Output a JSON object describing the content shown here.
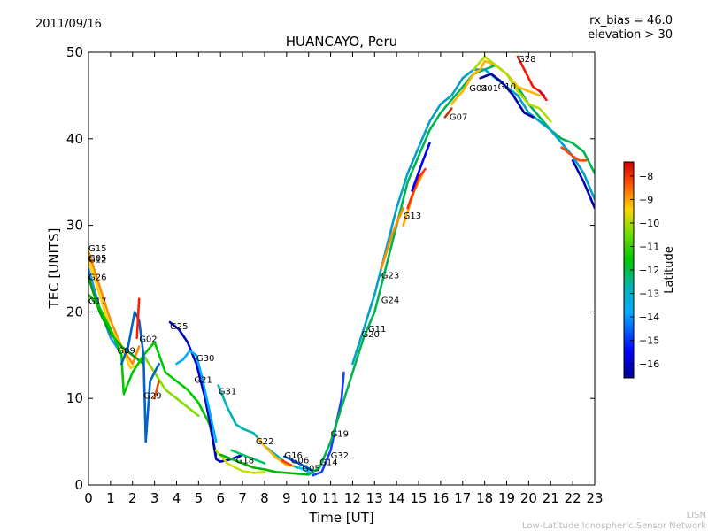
{
  "header": {
    "date": "2011/09/16",
    "rx_bias": "rx_bias = 46.0",
    "elevation": "elevation > 30"
  },
  "credit": {
    "line1": "LISN",
    "line2": "Low-Latitude Ionospheric Sensor Network"
  },
  "chart_data": {
    "type": "scatter",
    "title": "HUANCAYO, Peru",
    "xlabel": "Time [UT]",
    "ylabel": "TEC [UNITS]",
    "xlim": [
      0,
      23
    ],
    "ylim": [
      0,
      50
    ],
    "xticks": [
      "0",
      "1",
      "2",
      "3",
      "4",
      "5",
      "6",
      "7",
      "8",
      "9",
      "10",
      "11",
      "12",
      "13",
      "14",
      "15",
      "16",
      "17",
      "18",
      "19",
      "20",
      "21",
      "22",
      "23"
    ],
    "yticks": [
      "0",
      "10",
      "20",
      "30",
      "40",
      "50"
    ],
    "colorbar": {
      "label": "Latitude",
      "min": -16.6,
      "max": -7.4,
      "ticks": [
        "-8",
        "-9",
        "-10",
        "-11",
        "-12",
        "-13",
        "-14",
        "-15",
        "-16"
      ]
    },
    "tracks": [
      {
        "color": "#ff8c00",
        "points": [
          [
            0,
            27
          ],
          [
            0.5,
            23
          ],
          [
            1,
            19
          ],
          [
            1.5,
            16
          ],
          [
            2,
            14
          ],
          [
            2.3,
            16
          ]
        ]
      },
      {
        "color": "#ffd400",
        "points": [
          [
            0,
            26
          ],
          [
            0.5,
            22
          ],
          [
            1,
            18
          ],
          [
            1.5,
            16
          ],
          [
            1.9,
            13.5
          ],
          [
            2.3,
            14
          ]
        ]
      },
      {
        "color": "#1e90ff",
        "points": [
          [
            0,
            25
          ],
          [
            0.5,
            20.5
          ],
          [
            1,
            17
          ],
          [
            1.4,
            15.5
          ]
        ]
      },
      {
        "color": "#00a000",
        "points": [
          [
            0,
            24
          ],
          [
            0.5,
            20
          ],
          [
            1,
            17.5
          ],
          [
            1.5,
            16
          ],
          [
            2,
            15
          ],
          [
            2.5,
            14
          ]
        ]
      },
      {
        "color": "#00c800",
        "points": [
          [
            0,
            22
          ],
          [
            0.5,
            20.5
          ],
          [
            1,
            18
          ],
          [
            1.5,
            15
          ],
          [
            1.6,
            10.5
          ],
          [
            2,
            13
          ],
          [
            2.5,
            15
          ],
          [
            3,
            16.5
          ],
          [
            3.5,
            13
          ],
          [
            4,
            12
          ],
          [
            4.5,
            11
          ],
          [
            5,
            9.5
          ],
          [
            5.5,
            7
          ],
          [
            5.8,
            3.5
          ]
        ]
      },
      {
        "color": "#7fe000",
        "points": [
          [
            2.5,
            15
          ],
          [
            3,
            13
          ],
          [
            3.5,
            11
          ],
          [
            4,
            10
          ],
          [
            4.5,
            9
          ],
          [
            5,
            8
          ]
        ]
      },
      {
        "color": "#0064c8",
        "points": [
          [
            1.5,
            14
          ],
          [
            1.8,
            16
          ],
          [
            2.1,
            20
          ],
          [
            2.3,
            19
          ],
          [
            2.5,
            15
          ],
          [
            2.6,
            5
          ],
          [
            2.8,
            12
          ],
          [
            3.2,
            14
          ]
        ]
      },
      {
        "color": "#ff1a00",
        "points": [
          [
            2.2,
            17
          ],
          [
            2.3,
            21.5
          ]
        ]
      },
      {
        "color": "#e05000",
        "points": [
          [
            3,
            10
          ],
          [
            3.2,
            12
          ]
        ]
      },
      {
        "color": "#0000c0",
        "points": [
          [
            3.7,
            18.8
          ],
          [
            4.1,
            18
          ],
          [
            4.5,
            16.5
          ],
          [
            4.9,
            14
          ],
          [
            5.3,
            10
          ],
          [
            5.6,
            6
          ],
          [
            5.8,
            3
          ],
          [
            6,
            2.7
          ],
          [
            6.5,
            3
          ],
          [
            7,
            3.5
          ]
        ]
      },
      {
        "color": "#00aaff",
        "points": [
          [
            4,
            14
          ],
          [
            4.3,
            14.5
          ],
          [
            4.6,
            15.5
          ],
          [
            4.9,
            15
          ],
          [
            5.2,
            12
          ],
          [
            5.5,
            8.5
          ],
          [
            5.8,
            5
          ]
        ]
      },
      {
        "color": "#00b4b4",
        "points": [
          [
            5.9,
            11.5
          ],
          [
            6.3,
            9
          ],
          [
            6.7,
            7
          ],
          [
            7,
            6.5
          ],
          [
            7.5,
            6
          ],
          [
            8,
            4.5
          ],
          [
            8.5,
            3.5
          ],
          [
            9,
            2.5
          ],
          [
            9.5,
            2
          ],
          [
            10,
            1.7
          ]
        ]
      },
      {
        "color": "#c8e000",
        "points": [
          [
            5.8,
            4
          ],
          [
            6.3,
            2.5
          ],
          [
            7,
            1.6
          ],
          [
            7.5,
            1.4
          ],
          [
            8,
            1.5
          ]
        ]
      },
      {
        "color": "#00b400",
        "points": [
          [
            6,
            3.5
          ],
          [
            6.5,
            3
          ],
          [
            7,
            2.5
          ],
          [
            7.5,
            2
          ],
          [
            8,
            1.8
          ],
          [
            8.5,
            1.5
          ],
          [
            9,
            1.4
          ],
          [
            9.5,
            1.3
          ],
          [
            10,
            1.2
          ]
        ]
      },
      {
        "color": "#00c864",
        "points": [
          [
            6.5,
            4
          ],
          [
            7,
            3.5
          ],
          [
            7.5,
            3
          ],
          [
            8,
            2.5
          ]
        ]
      },
      {
        "color": "#ffb400",
        "points": [
          [
            7.7,
            5.4
          ],
          [
            8,
            4.5
          ],
          [
            8.5,
            3.2
          ],
          [
            9,
            2.3
          ],
          [
            9.3,
            2.2
          ]
        ]
      },
      {
        "color": "#ff3c00",
        "points": [
          [
            8.8,
            2.8
          ],
          [
            9.2,
            2.3
          ]
        ]
      },
      {
        "color": "#0050d0",
        "points": [
          [
            8.9,
            3.3
          ],
          [
            9.3,
            2.8
          ],
          [
            9.8,
            2.2
          ],
          [
            10.2,
            1.6
          ]
        ]
      },
      {
        "color": "#00d2ff",
        "points": [
          [
            9.6,
            2
          ],
          [
            10,
            1.5
          ],
          [
            10.3,
            1.2
          ]
        ]
      },
      {
        "color": "#1e3cff",
        "points": [
          [
            10.2,
            1.1
          ],
          [
            10.6,
            1.5
          ],
          [
            11,
            4
          ],
          [
            11.5,
            10
          ],
          [
            11.6,
            13
          ]
        ]
      },
      {
        "color": "#00b450",
        "points": [
          [
            10,
            1.2
          ],
          [
            10.5,
            2
          ],
          [
            11,
            5
          ],
          [
            11.5,
            9
          ],
          [
            12,
            13
          ],
          [
            12.5,
            17
          ],
          [
            13,
            20
          ],
          [
            13.5,
            25
          ],
          [
            14,
            30
          ],
          [
            14.5,
            35
          ],
          [
            15,
            38
          ],
          [
            15.5,
            41
          ],
          [
            16,
            43
          ],
          [
            16.5,
            44.5
          ],
          [
            17,
            46
          ],
          [
            17.5,
            47.5
          ],
          [
            18,
            48
          ],
          [
            18.5,
            48.5
          ],
          [
            19,
            47.5
          ],
          [
            19.5,
            46
          ],
          [
            20,
            44
          ],
          [
            20.5,
            42.5
          ],
          [
            21,
            41
          ],
          [
            21.5,
            40
          ],
          [
            22,
            39.5
          ],
          [
            22.5,
            38.5
          ],
          [
            23,
            36
          ]
        ]
      },
      {
        "color": "#00a0c8",
        "points": [
          [
            12,
            14
          ],
          [
            12.5,
            18
          ],
          [
            13,
            22
          ],
          [
            13.5,
            27
          ],
          [
            14,
            32
          ],
          [
            14.5,
            36
          ],
          [
            15,
            39
          ],
          [
            15.5,
            42
          ],
          [
            16,
            44
          ],
          [
            16.5,
            45
          ],
          [
            17,
            47
          ],
          [
            17.5,
            48
          ],
          [
            18,
            48
          ],
          [
            18.5,
            47
          ],
          [
            19,
            46
          ],
          [
            19.5,
            45
          ],
          [
            20,
            43
          ],
          [
            20.5,
            42
          ],
          [
            21,
            41
          ],
          [
            21.5,
            39.5
          ],
          [
            22,
            38
          ],
          [
            22.5,
            36
          ],
          [
            23,
            33
          ]
        ]
      },
      {
        "color": "#ff8c00",
        "points": [
          [
            13.3,
            25
          ],
          [
            13.8,
            29
          ],
          [
            14.3,
            32
          ]
        ]
      },
      {
        "color": "#ffa000",
        "points": [
          [
            14.3,
            30
          ],
          [
            14.8,
            34
          ],
          [
            15.2,
            36
          ]
        ]
      },
      {
        "color": "#ff3200",
        "points": [
          [
            14.5,
            32
          ],
          [
            15,
            35.5
          ],
          [
            15.3,
            36.5
          ]
        ]
      },
      {
        "color": "#0000ff",
        "points": [
          [
            14.7,
            34
          ],
          [
            15.2,
            37.5
          ],
          [
            15.5,
            39.5
          ]
        ]
      },
      {
        "color": "#c83200",
        "points": [
          [
            16.2,
            42.5
          ],
          [
            16.5,
            43.5
          ]
        ]
      },
      {
        "color": "#ffb400",
        "points": [
          [
            16.5,
            44
          ],
          [
            17,
            45.5
          ],
          [
            17.5,
            47.5
          ],
          [
            17.8,
            48
          ],
          [
            18,
            49
          ],
          [
            18.5,
            48.5
          ],
          [
            19,
            47.5
          ],
          [
            19.5,
            46
          ],
          [
            20,
            45.5
          ],
          [
            20.5,
            45
          ]
        ]
      },
      {
        "color": "#b4dc00",
        "points": [
          [
            17.5,
            48
          ],
          [
            18,
            49.5
          ],
          [
            18.5,
            48.5
          ],
          [
            19,
            47.5
          ],
          [
            19.5,
            45.5
          ],
          [
            20,
            44
          ],
          [
            20.5,
            43.5
          ],
          [
            21,
            42
          ]
        ]
      },
      {
        "color": "#0000a0",
        "points": [
          [
            17.8,
            47
          ],
          [
            18.3,
            47.5
          ],
          [
            18.8,
            46.5
          ],
          [
            19.3,
            45
          ],
          [
            19.8,
            43
          ],
          [
            20.2,
            42.5
          ]
        ]
      },
      {
        "color": "#ff1400",
        "points": [
          [
            19.5,
            49.5
          ],
          [
            19.8,
            48
          ],
          [
            20.2,
            46
          ],
          [
            20.5,
            45.5
          ],
          [
            20.8,
            44.5
          ]
        ]
      },
      {
        "color": "#c8003c",
        "points": [
          [
            20.5,
            45.5
          ],
          [
            20.7,
            45
          ]
        ]
      },
      {
        "color": "#ff4600",
        "points": [
          [
            21.5,
            39
          ],
          [
            22,
            38
          ],
          [
            22.3,
            37.5
          ],
          [
            22.6,
            37.5
          ]
        ]
      },
      {
        "color": "#0000b4",
        "points": [
          [
            22,
            37.5
          ],
          [
            22.5,
            35
          ],
          [
            23,
            32
          ]
        ]
      }
    ],
    "labels": [
      {
        "text": "G15",
        "x": 0.0,
        "y": 27.4
      },
      {
        "text": "G05",
        "x": 0.0,
        "y": 26.3
      },
      {
        "text": "G12",
        "x": 0.0,
        "y": 26.1
      },
      {
        "text": "G26",
        "x": 0.0,
        "y": 24.1
      },
      {
        "text": "G17",
        "x": 0.0,
        "y": 21.3
      },
      {
        "text": "G09",
        "x": 1.3,
        "y": 15.6
      },
      {
        "text": "G02",
        "x": 2.3,
        "y": 16.9
      },
      {
        "text": "G29",
        "x": 2.5,
        "y": 10.4
      },
      {
        "text": "G25",
        "x": 3.7,
        "y": 18.4
      },
      {
        "text": "G30",
        "x": 4.9,
        "y": 14.7
      },
      {
        "text": "G21",
        "x": 4.8,
        "y": 12.2
      },
      {
        "text": "G31",
        "x": 5.9,
        "y": 10.9
      },
      {
        "text": "G22",
        "x": 7.6,
        "y": 5.1
      },
      {
        "text": "G18",
        "x": 6.7,
        "y": 2.9
      },
      {
        "text": "G16",
        "x": 8.9,
        "y": 3.5
      },
      {
        "text": "G06",
        "x": 9.2,
        "y": 2.9
      },
      {
        "text": "G05",
        "x": 9.7,
        "y": 2.0
      },
      {
        "text": "G14",
        "x": 10.5,
        "y": 2.7
      },
      {
        "text": "G32",
        "x": 11.0,
        "y": 3.5
      },
      {
        "text": "G19",
        "x": 11.0,
        "y": 6.0
      },
      {
        "text": "G11",
        "x": 12.7,
        "y": 18.1
      },
      {
        "text": "G20",
        "x": 12.4,
        "y": 17.5
      },
      {
        "text": "G24",
        "x": 13.3,
        "y": 21.4
      },
      {
        "text": "G23",
        "x": 13.3,
        "y": 24.3
      },
      {
        "text": "G13",
        "x": 14.3,
        "y": 31.2
      },
      {
        "text": "G07",
        "x": 16.4,
        "y": 42.6
      },
      {
        "text": "G04",
        "x": 17.3,
        "y": 45.9
      },
      {
        "text": "G01",
        "x": 17.8,
        "y": 45.9
      },
      {
        "text": "G10",
        "x": 18.6,
        "y": 46.1
      },
      {
        "text": "G28",
        "x": 19.5,
        "y": 49.3
      }
    ]
  }
}
